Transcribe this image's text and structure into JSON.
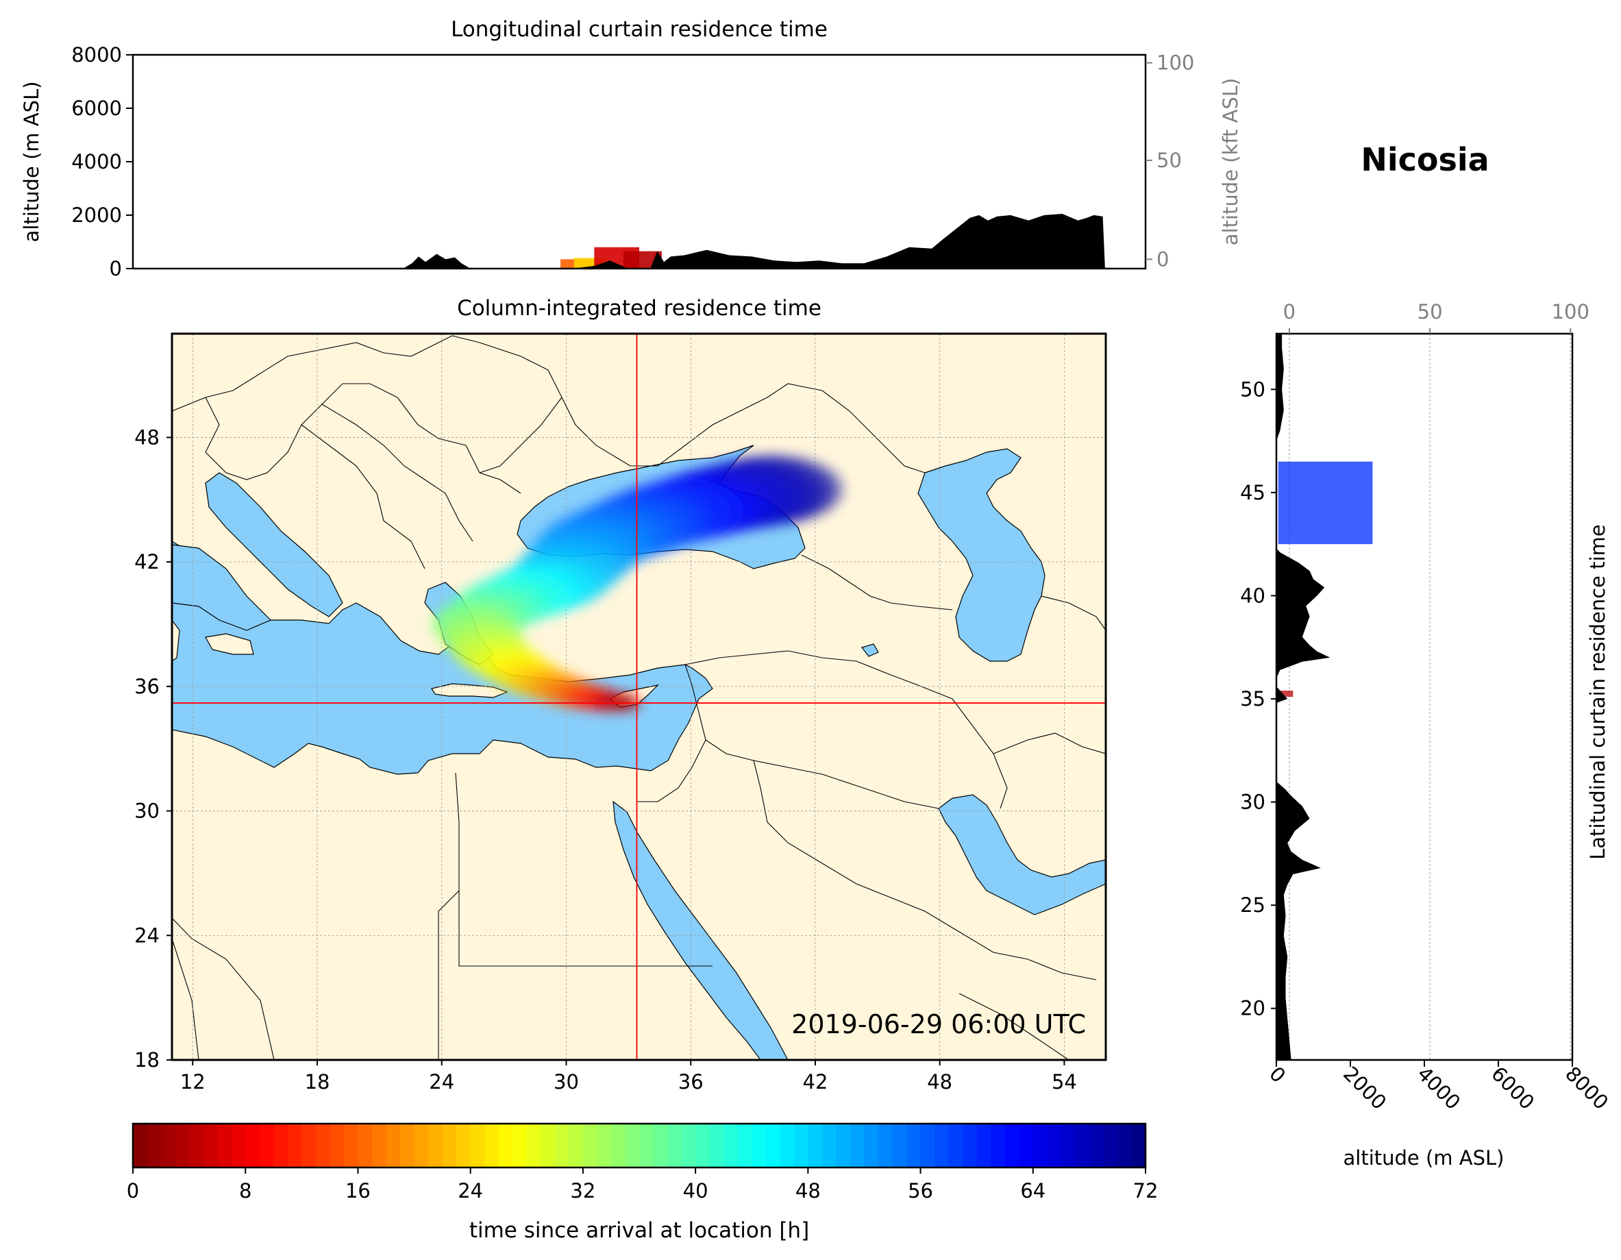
{
  "location_name": "Nicosia",
  "timestamp": "2019-06-29 06:00 UTC",
  "colors": {
    "land": "#fff6dc",
    "sea": "#87cefa",
    "terrain": "#000000",
    "crosshair": "#ff0000",
    "grid": "#999999",
    "secondary_axis": "#808080"
  },
  "chart_data": [
    {
      "panel": "longitudinal",
      "type": "area",
      "title": "Longitudinal curtain residence time",
      "ylabel": "altitude (m ASL)",
      "y2label": "altitude (kft ASL)",
      "ylim": [
        0,
        8000
      ],
      "yticks": [
        "0",
        "2000",
        "4000",
        "6000",
        "8000"
      ],
      "y2ticks": [
        "0",
        "50",
        "100"
      ],
      "xlim": [
        11,
        56
      ],
      "grid": true,
      "terrain": {
        "x": [
          11,
          23.0,
          23.4,
          23.7,
          24.0,
          24.5,
          24.9,
          25.3,
          25.6,
          26.0,
          26.5,
          27.5,
          28.5,
          29.5,
          30.5,
          31.5,
          32.2,
          32.6,
          33.0,
          33.5,
          34.0,
          34.3,
          34.6,
          34.9,
          35.5,
          36.5,
          37.5,
          38.5,
          39.5,
          40.5,
          41.5,
          42.5,
          43.5,
          44.5,
          45.5,
          46.5,
          47.0,
          47.6,
          48.2,
          48.6,
          49.0,
          49.4,
          50.0,
          50.8,
          51.5,
          52.3,
          53.0,
          53.4,
          53.7,
          54.1,
          54.2,
          56
        ],
        "altitude_m": [
          0,
          0,
          200,
          450,
          250,
          550,
          350,
          420,
          200,
          0,
          0,
          0,
          0,
          0,
          0,
          100,
          300,
          150,
          0,
          0,
          0,
          650,
          250,
          450,
          500,
          700,
          500,
          450,
          300,
          250,
          300,
          200,
          200,
          450,
          800,
          750,
          1100,
          1500,
          1900,
          2000,
          1800,
          1950,
          2000,
          1800,
          2000,
          2050,
          1800,
          1900,
          2000,
          1950,
          0,
          0
        ]
      },
      "residence_patches": [
        {
          "lon_from": 30.0,
          "lon_to": 31.5,
          "alt_top_m": 350,
          "hours": 16
        },
        {
          "lon_from": 30.6,
          "lon_to": 32.0,
          "alt_top_m": 400,
          "hours": 24
        },
        {
          "lon_from": 31.5,
          "lon_to": 33.5,
          "alt_top_m": 800,
          "hours": 6
        },
        {
          "lon_from": 32.8,
          "lon_to": 34.5,
          "alt_top_m": 650,
          "hours": 4
        }
      ]
    },
    {
      "panel": "map",
      "type": "map",
      "title": "Column-integrated residence time",
      "xlim": [
        11,
        56
      ],
      "ylim": [
        18,
        53
      ],
      "xticks": [
        "12",
        "18",
        "24",
        "30",
        "36",
        "42",
        "48",
        "54"
      ],
      "yticks": [
        "18",
        "24",
        "30",
        "36",
        "42",
        "48"
      ],
      "receptor": {
        "lon": 33.4,
        "lat": 35.2
      },
      "plume": [
        {
          "lon": 40.0,
          "lat": 45.5,
          "hours": 70
        },
        {
          "lon": 37.5,
          "lat": 45.0,
          "hours": 66
        },
        {
          "lon": 34.5,
          "lat": 44.2,
          "hours": 60
        },
        {
          "lon": 31.5,
          "lat": 43.0,
          "hours": 54
        },
        {
          "lon": 29.5,
          "lat": 41.0,
          "hours": 48
        },
        {
          "lon": 27.0,
          "lat": 40.0,
          "hours": 42
        },
        {
          "lon": 25.5,
          "lat": 39.0,
          "hours": 36
        },
        {
          "lon": 26.5,
          "lat": 37.5,
          "hours": 30
        },
        {
          "lon": 28.5,
          "lat": 36.3,
          "hours": 24
        },
        {
          "lon": 30.5,
          "lat": 35.6,
          "hours": 16
        },
        {
          "lon": 32.0,
          "lat": 35.3,
          "hours": 8
        },
        {
          "lon": 33.0,
          "lat": 35.2,
          "hours": 2
        }
      ]
    },
    {
      "panel": "latitudinal",
      "type": "area",
      "title": "Latitudinal curtain residence time",
      "xlabel": "altitude (m ASL)",
      "xlim": [
        0,
        8000
      ],
      "xticks": [
        "0",
        "2000",
        "4000",
        "6000",
        "8000"
      ],
      "x2ticks": [
        "0",
        "50",
        "100"
      ],
      "yticks": [
        "20",
        "25",
        "30",
        "35",
        "40",
        "45",
        "50"
      ],
      "ylim": [
        17.5,
        52.7
      ],
      "grid": true,
      "terrain": {
        "lat": [
          17.5,
          18.5,
          19.5,
          20.5,
          21.5,
          22.5,
          23.5,
          24.5,
          25.5,
          26.0,
          26.5,
          26.8,
          27.2,
          27.6,
          28.0,
          28.6,
          29.2,
          29.8,
          30.3,
          30.6,
          31.0,
          31.5,
          32.5,
          33.5,
          34.2,
          34.8,
          35.0,
          35.3,
          35.6,
          36.0,
          36.4,
          36.8,
          37.0,
          37.3,
          37.6,
          38.0,
          38.5,
          39.0,
          39.5,
          40.0,
          40.4,
          40.8,
          41.2,
          41.6,
          41.9,
          42.1,
          42.3,
          43.5,
          46.0,
          47.5,
          48.0,
          49.0,
          50.0,
          51.0,
          52.0,
          52.7
        ],
        "altitude_m": [
          400,
          350,
          300,
          250,
          250,
          300,
          200,
          250,
          200,
          300,
          450,
          1200,
          700,
          400,
          300,
          500,
          900,
          700,
          400,
          250,
          0,
          0,
          0,
          0,
          0,
          0,
          300,
          150,
          0,
          0,
          100,
          700,
          1450,
          1100,
          900,
          700,
          800,
          900,
          800,
          1100,
          1300,
          1000,
          900,
          600,
          300,
          100,
          0,
          0,
          0,
          0,
          100,
          200,
          150,
          200,
          150,
          150
        ]
      },
      "residence_patches": [
        {
          "lat_from": 42.5,
          "lat_to": 46.5,
          "alt_from_m": 50,
          "alt_to_m": 2600,
          "hours": 60
        },
        {
          "lat_from": 35.1,
          "lat_to": 35.4,
          "alt_from_m": 100,
          "alt_to_m": 450,
          "hours": 4
        }
      ]
    },
    {
      "panel": "colorbar",
      "type": "colorbar",
      "label": "time since arrival at location [h]",
      "range": [
        0,
        72
      ],
      "ticks": [
        "0",
        "8",
        "16",
        "24",
        "32",
        "40",
        "48",
        "56",
        "64",
        "72"
      ],
      "colormap": "jet_r"
    }
  ]
}
